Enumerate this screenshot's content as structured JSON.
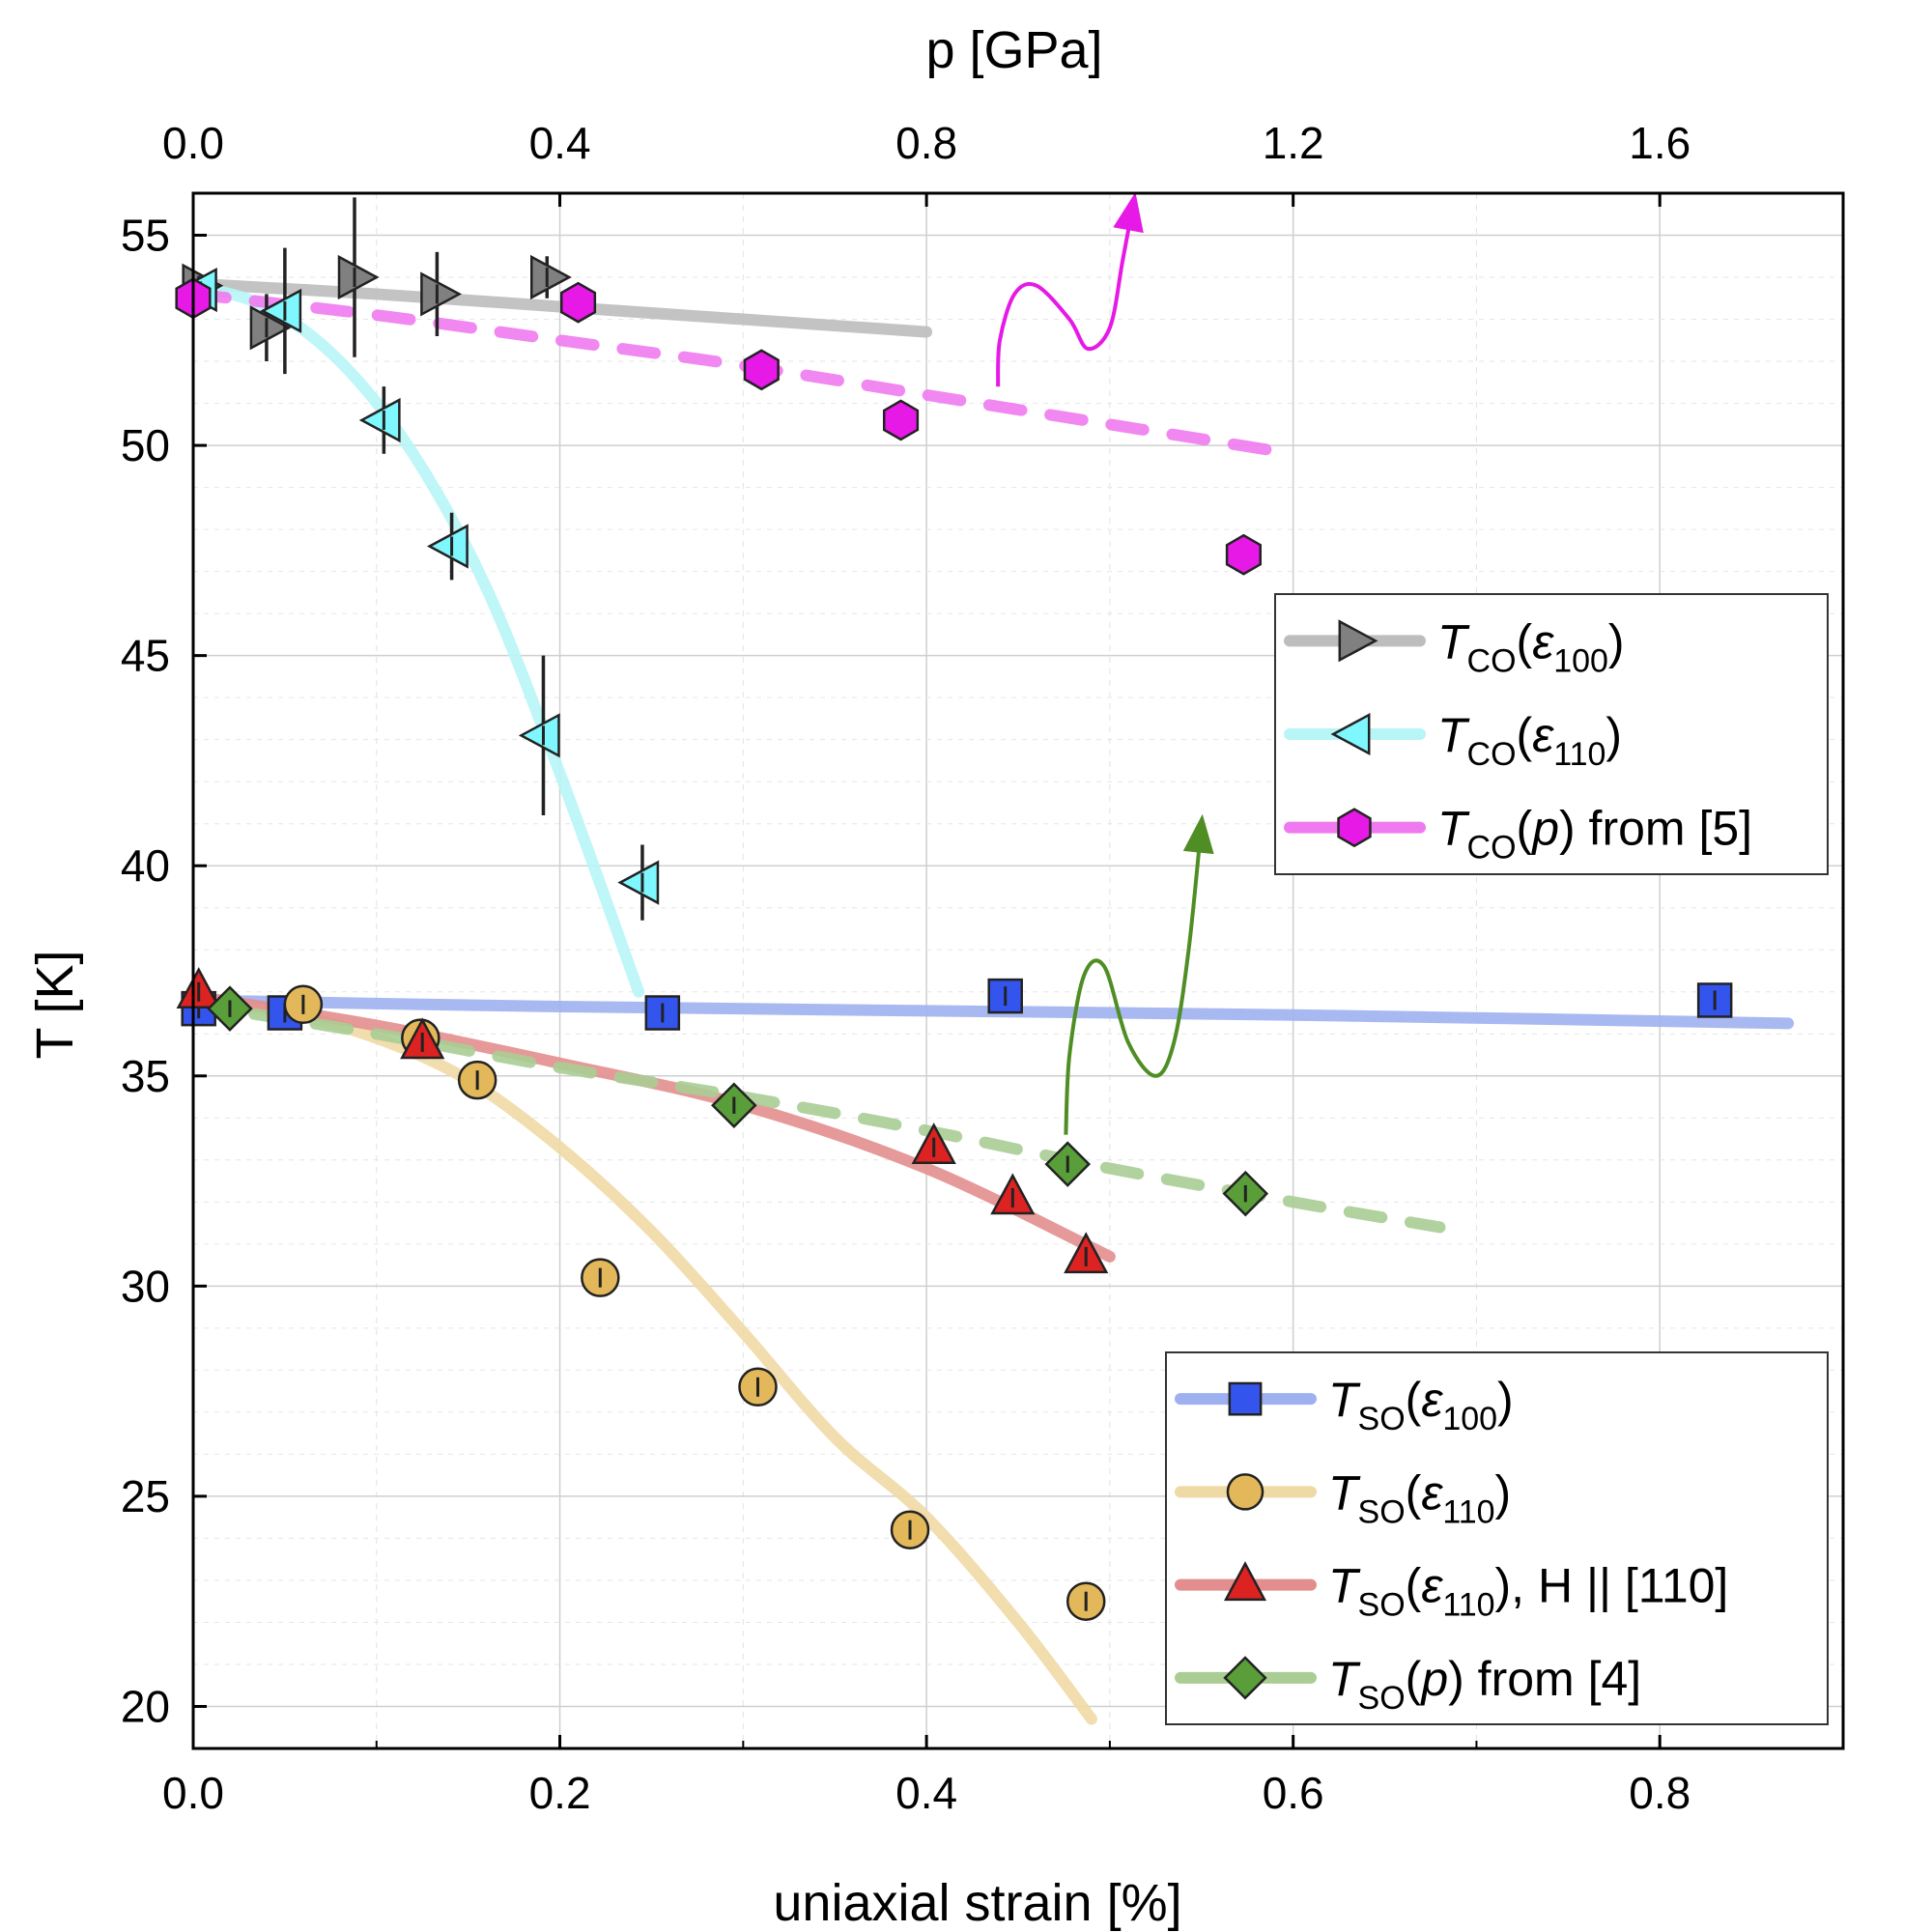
{
  "chart_data": {
    "type": "scatter",
    "xlabel": "uniaxial strain [%]",
    "x2label": "p [GPa]",
    "ylabel": "T [K]",
    "xlim": [
      0.0,
      0.9
    ],
    "ylim": [
      19,
      56
    ],
    "x2lim": [
      0.0,
      1.8
    ],
    "xticks": [
      "0.0",
      "0.2",
      "0.4",
      "0.6",
      "0.8"
    ],
    "x2ticks": [
      "0.0",
      "0.4",
      "0.8",
      "1.2",
      "1.6"
    ],
    "yticks": [
      "20",
      "25",
      "30",
      "35",
      "40",
      "45",
      "50",
      "55"
    ],
    "grid": true,
    "legends": [
      {
        "placement": "right-middle",
        "entries": [
          "TCO(ε100)",
          "TCO(ε110)",
          "TCO(p) from [5]"
        ]
      },
      {
        "placement": "bottom-right",
        "entries": [
          "TSO(ε100)",
          "TSO(ε110)",
          "TSO(ε110), H || [110]",
          "TSO(p) from [4]"
        ]
      }
    ],
    "series": [
      {
        "name": "TCO(ε100)",
        "marker": "triangle-right",
        "color": "#808080",
        "line_color": "#bdbdbd",
        "line_style": "solid",
        "points": [
          {
            "x": 0.003,
            "y": 53.8,
            "err": 0.3
          },
          {
            "x": 0.04,
            "y": 52.8,
            "err": 0.8
          },
          {
            "x": 0.088,
            "y": 54.0,
            "err": 1.9
          },
          {
            "x": 0.133,
            "y": 53.6,
            "err": 1.0
          },
          {
            "x": 0.193,
            "y": 54.0,
            "err": 0.5
          }
        ],
        "fit": [
          [
            0.0,
            53.85
          ],
          [
            0.1,
            53.6
          ],
          [
            0.2,
            53.3
          ],
          [
            0.3,
            53.0
          ],
          [
            0.4,
            52.7
          ]
        ]
      },
      {
        "name": "TCO(ε110)",
        "marker": "triangle-left",
        "color": "#7ff7ff",
        "line_color": "#b8f5f7",
        "line_style": "solid",
        "points": [
          {
            "x": 0.004,
            "y": 53.7,
            "err": 0.2
          },
          {
            "x": 0.05,
            "y": 53.2,
            "err": 1.5
          },
          {
            "x": 0.104,
            "y": 50.6,
            "err": 0.8
          },
          {
            "x": 0.141,
            "y": 47.6,
            "err": 0.8
          },
          {
            "x": 0.191,
            "y": 43.1,
            "err": 1.9
          },
          {
            "x": 0.245,
            "y": 39.6,
            "err": 0.9
          }
        ],
        "fit": [
          [
            0.0,
            53.8
          ],
          [
            0.04,
            53.3
          ],
          [
            0.08,
            52.0
          ],
          [
            0.12,
            49.8
          ],
          [
            0.16,
            46.6
          ],
          [
            0.2,
            42.2
          ],
          [
            0.243,
            37.0
          ]
        ]
      },
      {
        "name": "TCO(p) from [5]",
        "marker": "hexagon",
        "color": "#e619e6",
        "line_color": "#ef7af0",
        "line_style": "dashed",
        "points": [
          {
            "x": 0.0,
            "y": 53.5
          },
          {
            "x": 0.21,
            "y": 53.4
          },
          {
            "x": 0.31,
            "y": 51.8
          },
          {
            "x": 0.386,
            "y": 50.6
          },
          {
            "x": 0.573,
            "y": 47.4
          }
        ],
        "fit": [
          [
            0.0,
            53.6
          ],
          [
            0.1,
            53.1
          ],
          [
            0.2,
            52.5
          ],
          [
            0.3,
            51.9
          ],
          [
            0.4,
            51.2
          ],
          [
            0.5,
            50.5
          ],
          [
            0.6,
            49.8
          ]
        ]
      },
      {
        "name": "TSO(ε100)",
        "marker": "square",
        "color": "#3355ee",
        "line_color": "#9fb0f0",
        "line_style": "solid",
        "points": [
          {
            "x": 0.003,
            "y": 36.6,
            "err": 0.3
          },
          {
            "x": 0.05,
            "y": 36.5,
            "err": 0.3
          },
          {
            "x": 0.256,
            "y": 36.5,
            "err": 0.3
          },
          {
            "x": 0.443,
            "y": 36.9,
            "err": 0.3
          },
          {
            "x": 0.83,
            "y": 36.8,
            "err": 0.3
          }
        ],
        "fit": [
          [
            0.0,
            36.8
          ],
          [
            0.2,
            36.65
          ],
          [
            0.4,
            36.55
          ],
          [
            0.6,
            36.45
          ],
          [
            0.87,
            36.25
          ]
        ]
      },
      {
        "name": "TSO(ε110)",
        "marker": "circle",
        "color": "#e2b85a",
        "line_color": "#efd9a4",
        "line_style": "solid",
        "points": [
          {
            "x": 0.06,
            "y": 36.7,
            "err": 0.3
          },
          {
            "x": 0.124,
            "y": 35.9,
            "err": 0.3
          },
          {
            "x": 0.155,
            "y": 34.9,
            "err": 0.3
          },
          {
            "x": 0.222,
            "y": 30.2,
            "err": 0.3
          },
          {
            "x": 0.308,
            "y": 27.6,
            "err": 0.3
          },
          {
            "x": 0.391,
            "y": 24.2,
            "err": 0.3
          },
          {
            "x": 0.487,
            "y": 22.5,
            "err": 0.3
          }
        ],
        "fit": [
          [
            0.0,
            36.7
          ],
          [
            0.05,
            36.5
          ],
          [
            0.1,
            35.9
          ],
          [
            0.15,
            34.9
          ],
          [
            0.2,
            33.3
          ],
          [
            0.25,
            31.3
          ],
          [
            0.3,
            28.9
          ],
          [
            0.35,
            26.4
          ],
          [
            0.4,
            24.5
          ],
          [
            0.45,
            22.0
          ],
          [
            0.49,
            19.7
          ]
        ]
      },
      {
        "name": "TSO(ε110), H || [110]",
        "marker": "triangle-up",
        "color": "#dd2222",
        "line_color": "#e38e8e",
        "line_style": "solid",
        "points": [
          {
            "x": 0.003,
            "y": 37.0,
            "err": 0.3
          },
          {
            "x": 0.125,
            "y": 35.8,
            "err": 0.3
          },
          {
            "x": 0.404,
            "y": 33.3,
            "err": 0.3
          },
          {
            "x": 0.447,
            "y": 32.1,
            "err": 0.3
          },
          {
            "x": 0.487,
            "y": 30.7,
            "err": 0.3
          }
        ],
        "fit": [
          [
            0.0,
            36.9
          ],
          [
            0.1,
            36.2
          ],
          [
            0.2,
            35.3
          ],
          [
            0.3,
            34.3
          ],
          [
            0.4,
            32.8
          ],
          [
            0.5,
            30.7
          ]
        ]
      },
      {
        "name": "TSO(p) from [4]",
        "marker": "diamond",
        "color": "#5a9e3a",
        "line_color": "#a9cd93",
        "line_style": "dashed",
        "points": [
          {
            "x": 0.02,
            "y": 36.6,
            "err": 0.2
          },
          {
            "x": 0.295,
            "y": 34.3,
            "err": 0.2
          },
          {
            "x": 0.477,
            "y": 32.9,
            "err": 0.2
          },
          {
            "x": 0.574,
            "y": 32.2,
            "err": 0.2
          }
        ],
        "fit": [
          [
            0.0,
            36.7
          ],
          [
            0.1,
            36.0
          ],
          [
            0.2,
            35.2
          ],
          [
            0.3,
            34.5
          ],
          [
            0.4,
            33.7
          ],
          [
            0.5,
            32.8
          ],
          [
            0.6,
            32.0
          ],
          [
            0.68,
            31.4
          ]
        ]
      }
    ],
    "annotations": [
      {
        "kind": "arrow",
        "color": "#e619e6",
        "points": [
          [
            0.439,
            51.4
          ],
          [
            0.44,
            52.5
          ],
          [
            0.448,
            53.6
          ],
          [
            0.46,
            53.8
          ],
          [
            0.478,
            53.0
          ],
          [
            0.488,
            52.3
          ],
          [
            0.5,
            52.8
          ],
          [
            0.507,
            54.4
          ],
          [
            0.513,
            55.8
          ]
        ]
      },
      {
        "kind": "arrow",
        "color": "#4f8e24",
        "points": [
          [
            0.476,
            33.6
          ],
          [
            0.478,
            35.5
          ],
          [
            0.486,
            37.4
          ],
          [
            0.497,
            37.6
          ],
          [
            0.51,
            35.8
          ],
          [
            0.525,
            35.0
          ],
          [
            0.535,
            35.8
          ],
          [
            0.543,
            38.0
          ],
          [
            0.55,
            41.0
          ]
        ]
      }
    ]
  }
}
